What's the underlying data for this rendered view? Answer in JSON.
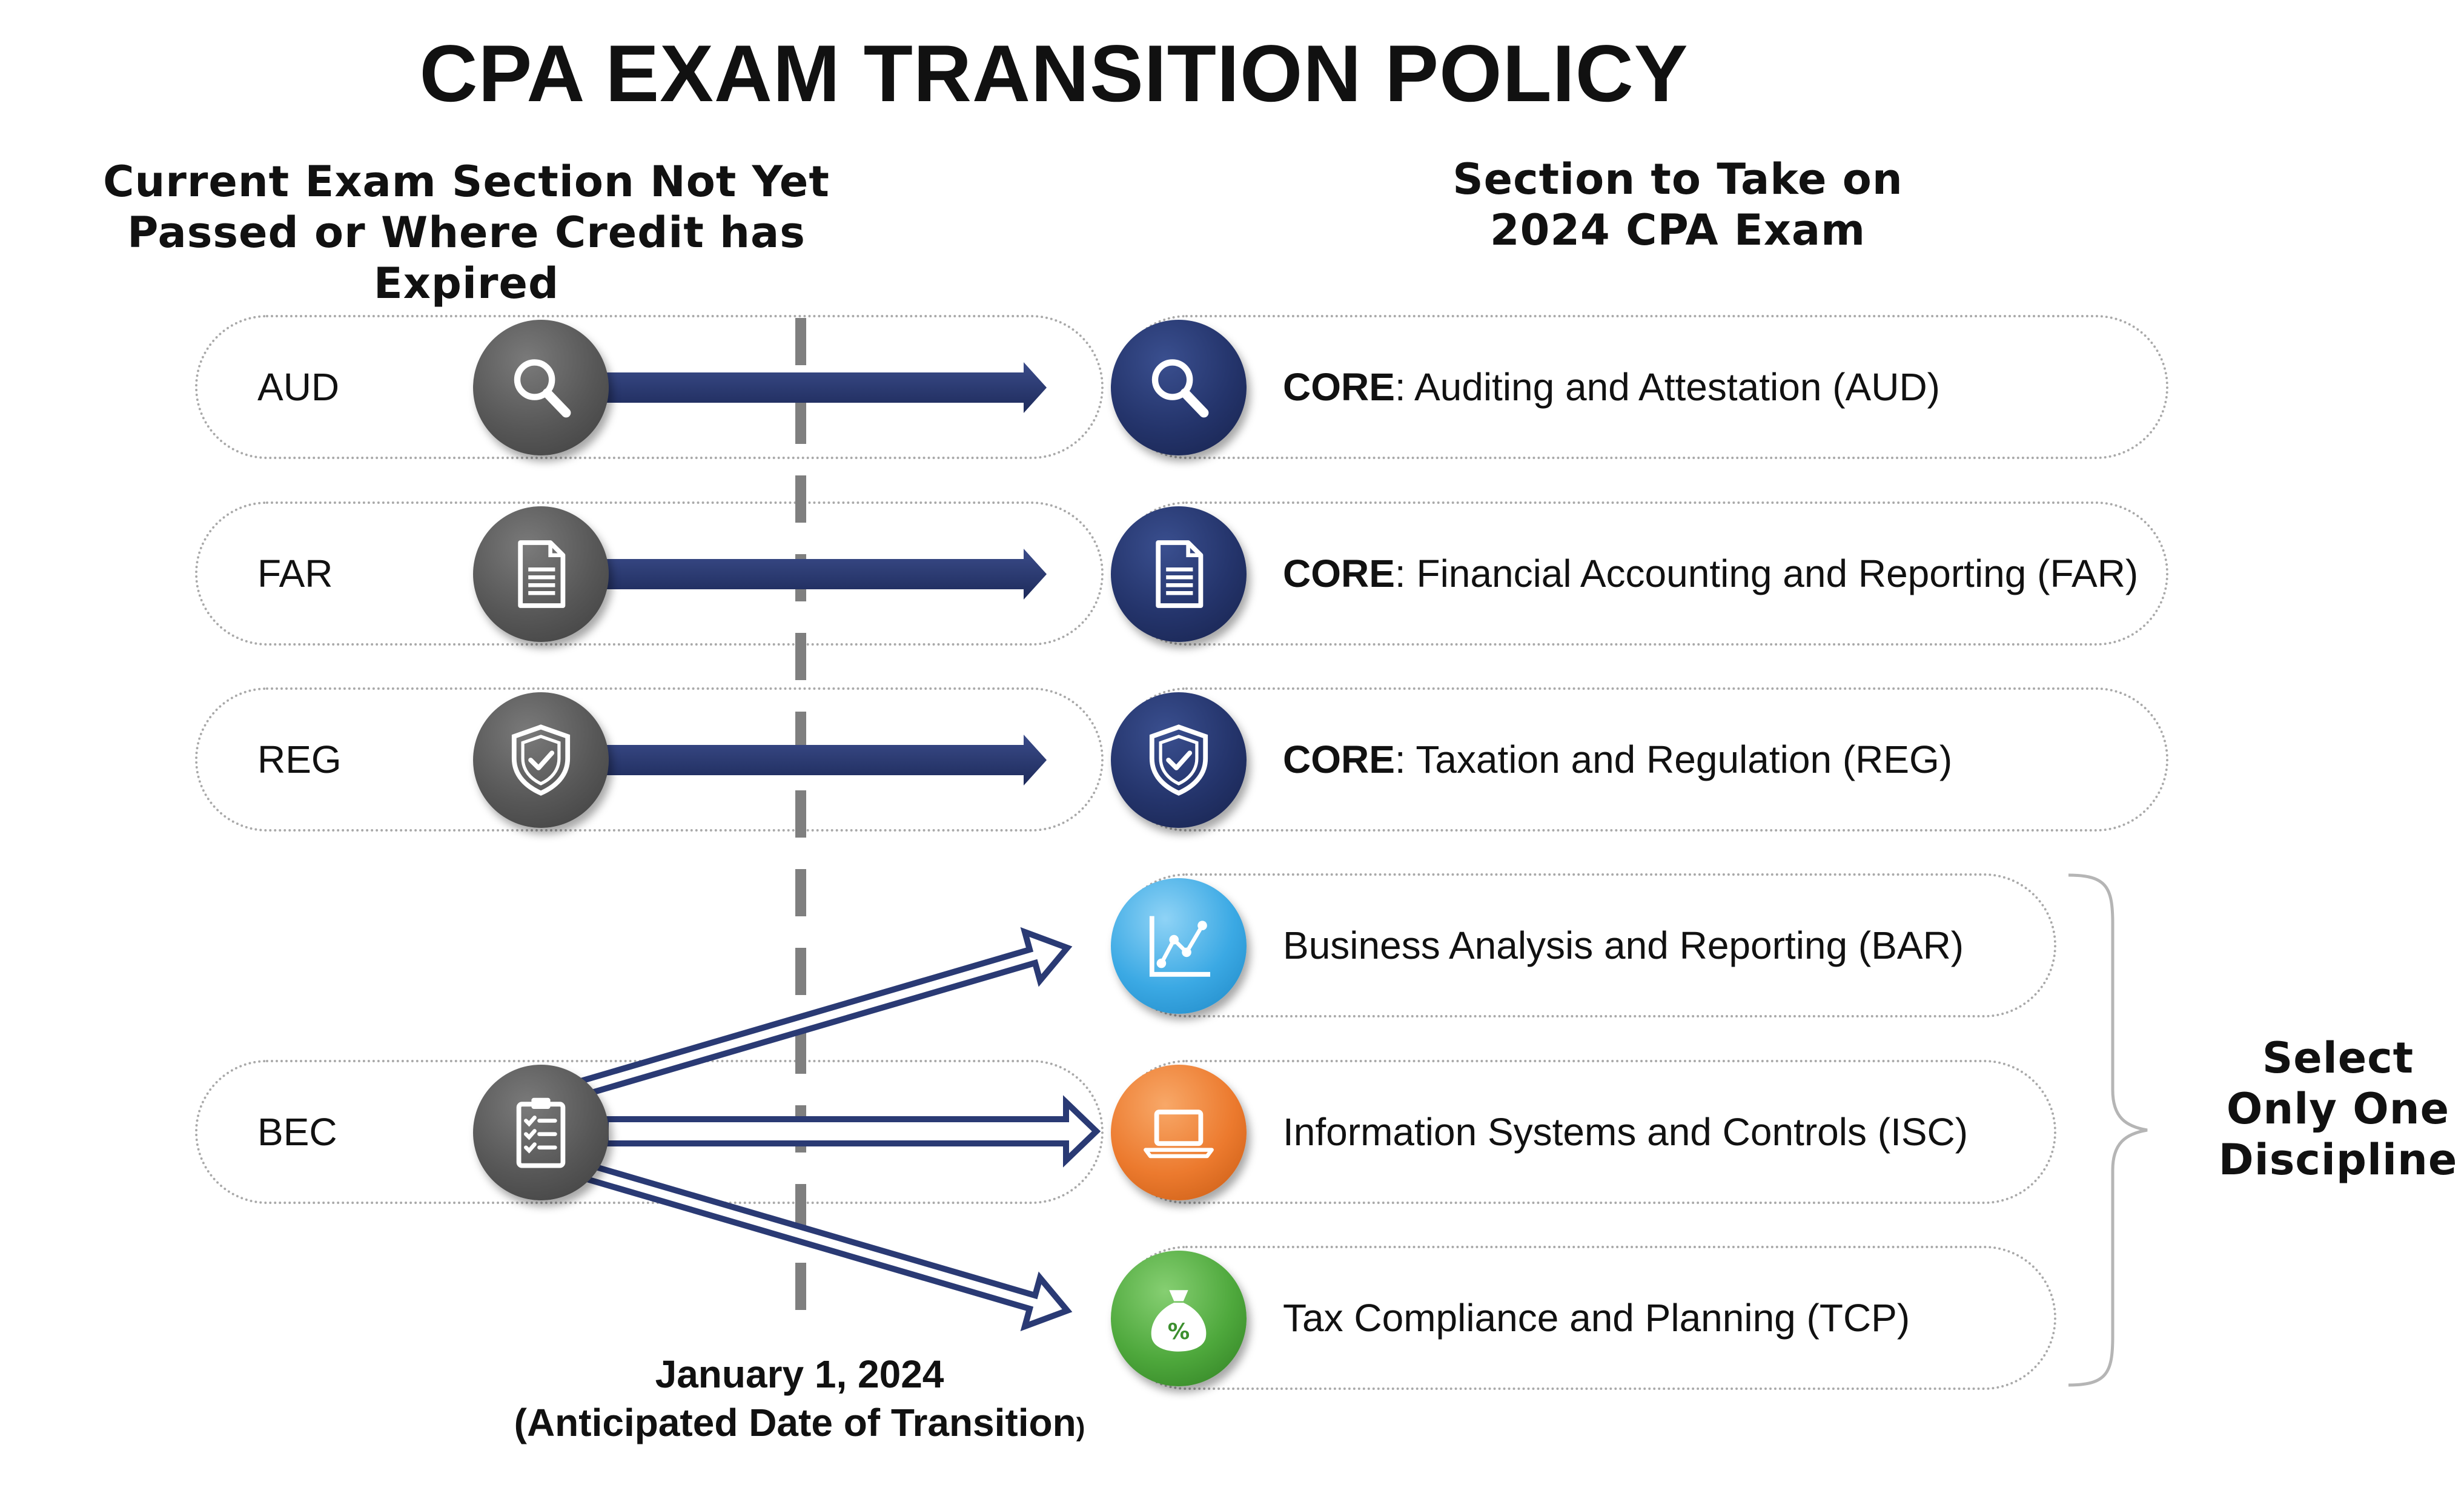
{
  "title": "CPA EXAM TRANSITION POLICY",
  "left_header": [
    "Current Exam Section Not Yet",
    "Passed or Where Credit has Expired"
  ],
  "right_header": [
    "Section to Take on",
    "2024 CPA Exam"
  ],
  "current_sections": [
    {
      "label": "AUD",
      "icon": "magnifier-icon"
    },
    {
      "label": "FAR",
      "icon": "document-icon"
    },
    {
      "label": "REG",
      "icon": "shield-check-icon"
    },
    {
      "label": "BEC",
      "icon": "clipboard-checklist-icon"
    }
  ],
  "new_sections": [
    {
      "prefix": "CORE",
      "label": ": Auditing and Attestation (AUD)",
      "icon": "magnifier-icon",
      "color": "#1f2e63"
    },
    {
      "prefix": "CORE",
      "label": ": Financial Accounting and Reporting (FAR)",
      "icon": "document-icon",
      "color": "#1f2e63"
    },
    {
      "prefix": "CORE",
      "label": ": Taxation and Regulation (REG)",
      "icon": "shield-check-icon",
      "color": "#1f2e63"
    },
    {
      "prefix": "",
      "label": "Business Analysis and Reporting (BAR)",
      "icon": "line-chart-icon",
      "color": "#3ba9e4"
    },
    {
      "prefix": "",
      "label": "Information Systems and Controls (ISC)",
      "icon": "laptop-icon",
      "color": "#ec7a2e"
    },
    {
      "prefix": "",
      "label": "Tax Compliance and Planning (TCP)",
      "icon": "money-bag-percent-icon",
      "color": "#4ea83c"
    }
  ],
  "brace_label": [
    "Select",
    "Only One",
    "Discipline"
  ],
  "transition_date": "January 1, 2024",
  "transition_note": "(Anticipated Date of Transition",
  "transition_note_close": ")",
  "colors": {
    "arrow": "#2a3a74",
    "divider": "#7f7f7f",
    "gray_icon": "#575757",
    "navy_icon": "#24346b"
  }
}
